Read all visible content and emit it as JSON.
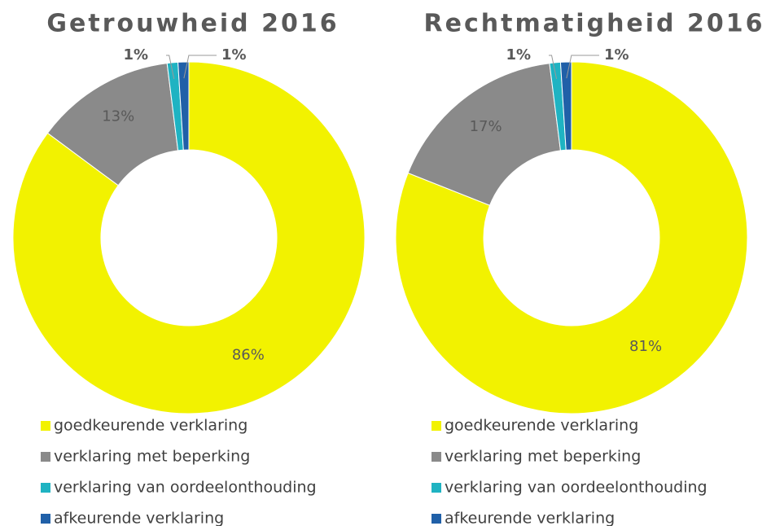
{
  "chart_data": [
    {
      "type": "donut",
      "title": "Getrouwheid 2016",
      "categories": [
        "goedkeurende verklaring",
        "verklaring met beperking",
        "verklaring van oordeelonthouding",
        "afkeurende verklaring"
      ],
      "values": [
        86,
        13,
        1,
        1
      ],
      "value_labels": [
        "86%",
        "13%",
        "1%",
        "1%"
      ],
      "colors": [
        "#f2f200",
        "#8a8a8a",
        "#1fb3c2",
        "#2060a8"
      ]
    },
    {
      "type": "donut",
      "title": "Rechtmatigheid 2016",
      "categories": [
        "goedkeurende verklaring",
        "verklaring met beperking",
        "verklaring van oordeelonthouding",
        "afkeurende verklaring"
      ],
      "values": [
        81,
        17,
        1,
        1
      ],
      "value_labels": [
        "81%",
        "17%",
        "1%",
        "1%"
      ],
      "colors": [
        "#f2f200",
        "#8a8a8a",
        "#1fb3c2",
        "#2060a8"
      ]
    }
  ]
}
